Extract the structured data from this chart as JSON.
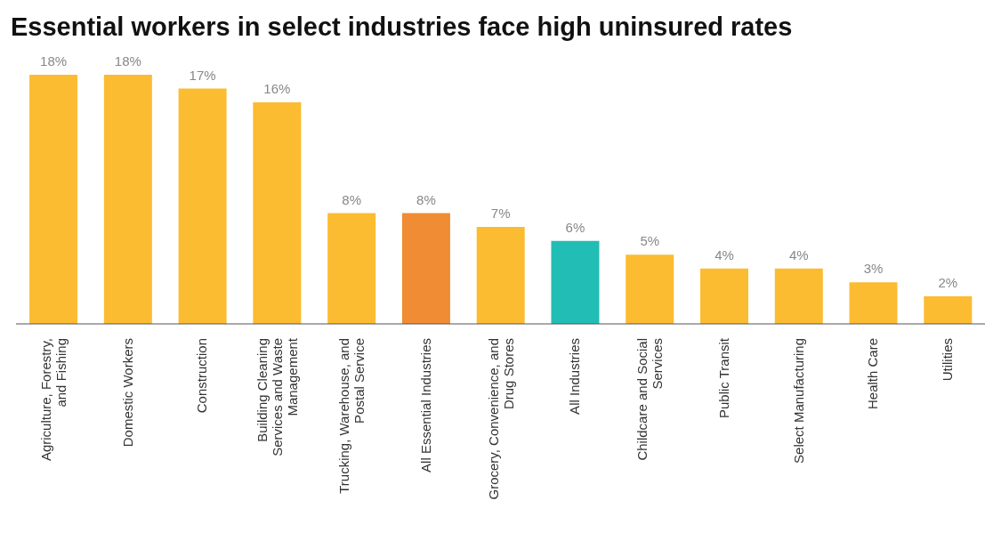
{
  "chart_data": {
    "type": "bar",
    "title": "Essential workers in select industries face high uninsured rates",
    "categories": [
      "Agriculture, Forestry, and Fishing",
      "Domestic Workers",
      "Construction",
      "Building Cleaning Services and Waste Management",
      "Trucking, Warehouse, and Postal Service",
      "All Essential Industries",
      "Grocery, Convenience, and Drug Stores",
      "All Industries",
      "Childcare and Social Services",
      "Public Transit",
      "Select Manufacturing",
      "Health Care",
      "Utilities"
    ],
    "values": [
      18,
      18,
      17,
      16,
      8,
      8,
      7,
      6,
      5,
      4,
      4,
      3,
      2
    ],
    "value_labels": [
      "18%",
      "18%",
      "17%",
      "16%",
      "8%",
      "8%",
      "7%",
      "6%",
      "5%",
      "4%",
      "4%",
      "3%",
      "2%"
    ],
    "colors": [
      "#fbbc31",
      "#fbbc31",
      "#fbbc31",
      "#fbbc31",
      "#fbbc31",
      "#f08c33",
      "#fbbc31",
      "#22bdb5",
      "#fbbc31",
      "#fbbc31",
      "#fbbc31",
      "#fbbc31",
      "#fbbc31"
    ],
    "grid": false,
    "legend": false
  }
}
